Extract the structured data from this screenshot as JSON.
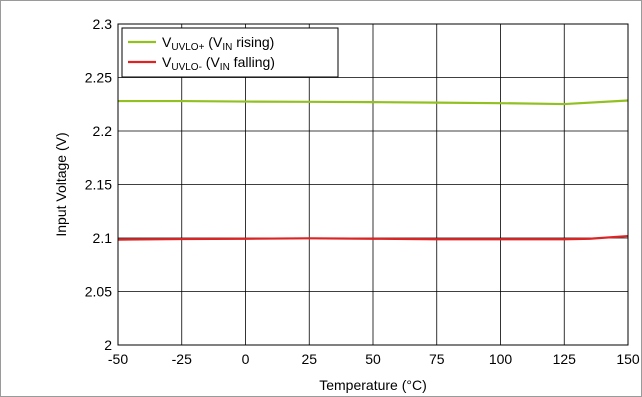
{
  "chart_data": {
    "type": "line",
    "title": "",
    "xlabel": "Temperature (°C)",
    "ylabel": "Input Voltage (V)",
    "xlim": [
      -50,
      150
    ],
    "ylim": [
      2.0,
      2.3
    ],
    "xticks": [
      -50,
      -25,
      0,
      25,
      50,
      75,
      100,
      125,
      150
    ],
    "yticks": [
      2.0,
      2.05,
      2.1,
      2.15,
      2.2,
      2.25,
      2.3
    ],
    "xtick_labels": [
      "-50",
      "-25",
      "0",
      "25",
      "50",
      "75",
      "100",
      "125",
      "150"
    ],
    "ytick_labels": [
      "2",
      "2.05",
      "2.1",
      "2.15",
      "2.2",
      "2.25",
      "2.3"
    ],
    "grid": true,
    "legend_position": "top-left",
    "series": [
      {
        "name": "V_UVLO+ (V_IN rising)",
        "legend": {
          "main": "V",
          "sub": "UVLO+",
          "mid": " (V",
          "sub2": "IN",
          "tail": " rising)"
        },
        "color": "#92c020",
        "x": [
          -50,
          -40,
          -25,
          0,
          25,
          50,
          75,
          100,
          125,
          150
        ],
        "y": [
          2.228,
          2.228,
          2.228,
          2.2275,
          2.2273,
          2.227,
          2.2265,
          2.226,
          2.2252,
          2.2285
        ]
      },
      {
        "name": "V_UVLO- (V_IN falling)",
        "legend": {
          "main": "V",
          "sub": "UVLO-",
          "mid": " (V",
          "sub2": "IN",
          "tail": " falling)"
        },
        "color": "#dd2424",
        "x": [
          -50,
          -25,
          0,
          25,
          50,
          75,
          100,
          125,
          135,
          150
        ],
        "y": [
          2.0985,
          2.099,
          2.0993,
          2.0997,
          2.0993,
          2.0988,
          2.0988,
          2.0988,
          2.0993,
          2.1018
        ]
      }
    ]
  }
}
